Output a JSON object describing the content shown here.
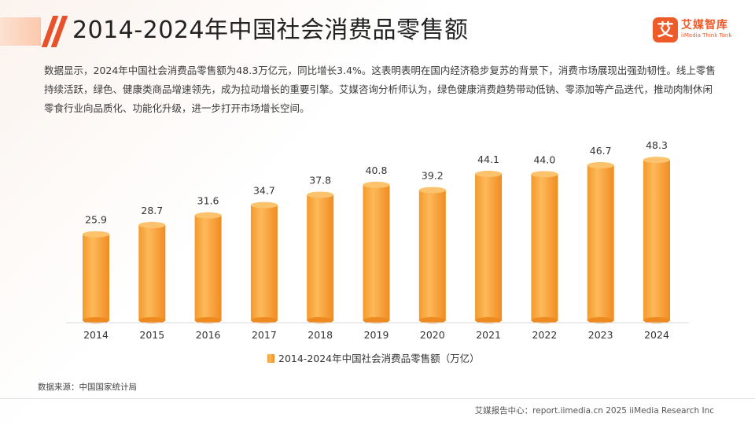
{
  "header": {
    "title": "2014-2024年中国社会消费品零售额"
  },
  "brand": {
    "mark": "艾",
    "name_cn": "艾媒智库",
    "name_en": "iiMedia Think Tank",
    "color": "#ef5a29"
  },
  "intro": "数据显示，2024年中国社会消费品零售额为48.3万亿元，同比增长3.4%。这表明表明在国内经济稳步复苏的背景下，消费市场展现出强劲韧性。线上零售持续活跃，绿色、健康类商品增速领先，成为拉动增长的重要引擎。艾媒咨询分析师认为，绿色健康消费趋势带动低钠、零添加等产品迭代，推动肉制休闲零食行业向品质化、功能化升级，进一步打开市场增长空间。",
  "source": "数据来源：中国国家统计局",
  "footer": "艾媒报告中心：report.iimedia.cn  2025 iiMedia Research Inc",
  "chart_data": {
    "type": "bar",
    "title": "",
    "xlabel": "",
    "ylabel": "",
    "categories": [
      "2014",
      "2015",
      "2016",
      "2017",
      "2018",
      "2019",
      "2020",
      "2021",
      "2022",
      "2023",
      "2024"
    ],
    "series": [
      {
        "name": "2014-2024年中国社会消费品零售额（万亿）",
        "values": [
          25.9,
          28.7,
          31.6,
          34.7,
          37.8,
          40.8,
          39.2,
          44.1,
          44.0,
          46.7,
          48.3
        ]
      }
    ],
    "ylim": [
      0,
      50
    ],
    "grid": false,
    "legend": "bottom-center",
    "colors": {
      "bar_main": "#f8a43a",
      "bar_light": "#fdd08a",
      "bar_dark": "#ee8a1f",
      "bar_top": "#fcc36c",
      "axis": "#d9d9d9"
    }
  }
}
